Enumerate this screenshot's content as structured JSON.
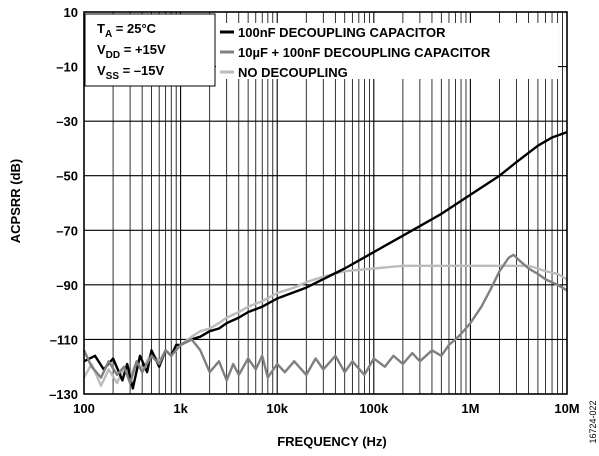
{
  "chart_data": {
    "type": "line",
    "xlabel": "FREQUENCY (Hz)",
    "ylabel": "ACPSRR (dB)",
    "x_scale": "log",
    "xlim": [
      100,
      10000000
    ],
    "ylim": [
      -130,
      10
    ],
    "x_ticks": [
      {
        "value": 100,
        "label": "100"
      },
      {
        "value": 1000,
        "label": "1k"
      },
      {
        "value": 10000,
        "label": "10k"
      },
      {
        "value": 100000,
        "label": "100k"
      },
      {
        "value": 1000000,
        "label": "1M"
      },
      {
        "value": 10000000,
        "label": "10M"
      }
    ],
    "y_ticks": [
      {
        "value": 10,
        "label": "10"
      },
      {
        "value": -10,
        "label": "–10"
      },
      {
        "value": -30,
        "label": "–30"
      },
      {
        "value": -50,
        "label": "–50"
      },
      {
        "value": -70,
        "label": "–70"
      },
      {
        "value": -90,
        "label": "–90"
      },
      {
        "value": -110,
        "label": "–110"
      },
      {
        "value": -130,
        "label": "–130"
      }
    ],
    "grid": true,
    "legend_position": "top-center",
    "conditions": [
      {
        "main": "T",
        "sub": "A",
        "rest": " = 25°C"
      },
      {
        "main": "V",
        "sub": "DD",
        "rest": " = +15V"
      },
      {
        "main": "V",
        "sub": "SS",
        "rest": " = –15V"
      }
    ],
    "series": [
      {
        "name": "100nF DECOUPLING CAPACITOR",
        "color": "#000000",
        "points": [
          [
            100,
            -118
          ],
          [
            130,
            -116
          ],
          [
            160,
            -121
          ],
          [
            200,
            -117
          ],
          [
            250,
            -125
          ],
          [
            280,
            -119
          ],
          [
            320,
            -128
          ],
          [
            380,
            -116
          ],
          [
            450,
            -122
          ],
          [
            500,
            -114
          ],
          [
            600,
            -120
          ],
          [
            700,
            -114
          ],
          [
            800,
            -116
          ],
          [
            900,
            -112
          ],
          [
            1000,
            -112
          ],
          [
            1300,
            -110
          ],
          [
            1600,
            -109
          ],
          [
            2000,
            -107
          ],
          [
            2500,
            -106
          ],
          [
            3000,
            -104
          ],
          [
            4000,
            -102
          ],
          [
            5000,
            -100
          ],
          [
            7000,
            -98
          ],
          [
            10000,
            -95
          ],
          [
            20000,
            -91
          ],
          [
            50000,
            -84
          ],
          [
            100000,
            -78
          ],
          [
            200000,
            -72
          ],
          [
            500000,
            -64
          ],
          [
            1000000,
            -57
          ],
          [
            2000000,
            -50
          ],
          [
            3000000,
            -45
          ],
          [
            5000000,
            -39
          ],
          [
            7000000,
            -36
          ],
          [
            10000000,
            -34
          ]
        ]
      },
      {
        "name": "10µF + 100nF DECOUPLING CAPACITOR",
        "color": "#808080",
        "points": [
          [
            100,
            -114
          ],
          [
            120,
            -120
          ],
          [
            150,
            -124
          ],
          [
            180,
            -118
          ],
          [
            220,
            -123
          ],
          [
            260,
            -120
          ],
          [
            300,
            -126
          ],
          [
            350,
            -118
          ],
          [
            400,
            -122
          ],
          [
            500,
            -116
          ],
          [
            600,
            -119
          ],
          [
            700,
            -114
          ],
          [
            800,
            -116
          ],
          [
            1000,
            -112
          ],
          [
            1300,
            -110
          ],
          [
            1600,
            -114
          ],
          [
            2000,
            -122
          ],
          [
            2500,
            -118
          ],
          [
            3000,
            -125
          ],
          [
            3500,
            -119
          ],
          [
            4000,
            -123
          ],
          [
            5000,
            -117
          ],
          [
            6000,
            -121
          ],
          [
            7000,
            -116
          ],
          [
            8000,
            -124
          ],
          [
            10000,
            -119
          ],
          [
            12000,
            -122
          ],
          [
            15000,
            -118
          ],
          [
            20000,
            -123
          ],
          [
            25000,
            -117
          ],
          [
            30000,
            -121
          ],
          [
            40000,
            -116
          ],
          [
            50000,
            -122
          ],
          [
            60000,
            -118
          ],
          [
            80000,
            -123
          ],
          [
            100000,
            -117
          ],
          [
            130000,
            -120
          ],
          [
            160000,
            -116
          ],
          [
            200000,
            -119
          ],
          [
            250000,
            -115
          ],
          [
            300000,
            -118
          ],
          [
            400000,
            -114
          ],
          [
            500000,
            -116
          ],
          [
            600000,
            -112
          ],
          [
            700000,
            -110
          ],
          [
            800000,
            -108
          ],
          [
            1000000,
            -104
          ],
          [
            1300000,
            -98
          ],
          [
            1600000,
            -92
          ],
          [
            2000000,
            -85
          ],
          [
            2500000,
            -80
          ],
          [
            2800000,
            -79
          ],
          [
            3200000,
            -81
          ],
          [
            4000000,
            -84
          ],
          [
            5000000,
            -86
          ],
          [
            6000000,
            -88
          ],
          [
            8000000,
            -90
          ],
          [
            10000000,
            -92
          ]
        ]
      },
      {
        "name": "NO DECOUPLING",
        "color": "#bcbcbc",
        "points": [
          [
            100,
            -124
          ],
          [
            120,
            -119
          ],
          [
            150,
            -127
          ],
          [
            180,
            -121
          ],
          [
            220,
            -126
          ],
          [
            260,
            -120
          ],
          [
            300,
            -124
          ],
          [
            350,
            -118
          ],
          [
            400,
            -121
          ],
          [
            500,
            -115
          ],
          [
            600,
            -118
          ],
          [
            700,
            -114
          ],
          [
            800,
            -116
          ],
          [
            1000,
            -112
          ],
          [
            1300,
            -109
          ],
          [
            1600,
            -107
          ],
          [
            2000,
            -106
          ],
          [
            2500,
            -104
          ],
          [
            3000,
            -102
          ],
          [
            4000,
            -100
          ],
          [
            5000,
            -98
          ],
          [
            7000,
            -96
          ],
          [
            10000,
            -93
          ],
          [
            15000,
            -91
          ],
          [
            20000,
            -89
          ],
          [
            30000,
            -87
          ],
          [
            50000,
            -85
          ],
          [
            100000,
            -84
          ],
          [
            200000,
            -83
          ],
          [
            500000,
            -83
          ],
          [
            1000000,
            -83
          ],
          [
            2000000,
            -83
          ],
          [
            3000000,
            -83
          ],
          [
            4000000,
            -83
          ],
          [
            5000000,
            -84
          ],
          [
            6000000,
            -85
          ],
          [
            8000000,
            -86
          ],
          [
            10000000,
            -88
          ]
        ]
      }
    ]
  },
  "figure_id": "16724-022"
}
